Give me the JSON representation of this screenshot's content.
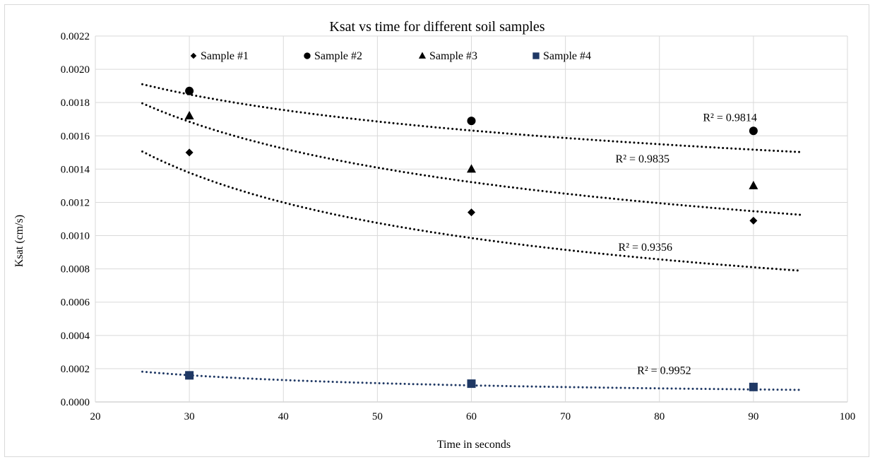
{
  "chart_data": {
    "type": "scatter",
    "title": "Ksat vs time for different soil samples",
    "xlabel": "Time in seconds",
    "ylabel": "Ksat (cm/s)",
    "xlim": [
      20,
      100
    ],
    "ylim": [
      0,
      0.0022
    ],
    "x_ticks": [
      "20",
      "30",
      "40",
      "50",
      "60",
      "70",
      "80",
      "90",
      "100"
    ],
    "y_ticks": [
      "0.0000",
      "0.0002",
      "0.0004",
      "0.0006",
      "0.0008",
      "0.0010",
      "0.0012",
      "0.0014",
      "0.0016",
      "0.0018",
      "0.0020",
      "0.0022"
    ],
    "grid": true,
    "legend_position": "top",
    "trendline": "power",
    "trend_x_range": [
      25,
      95
    ],
    "series": [
      {
        "name": "Sample #1",
        "marker": "diamond",
        "color": "#000000",
        "x": [
          30,
          60,
          90
        ],
        "y": [
          0.0015,
          0.00114,
          0.00109
        ],
        "trend": {
          "a": 0.00715,
          "b": -0.484
        },
        "r2": "R² = 0.9356",
        "r2_pos": [
          78.5,
          0.00093
        ]
      },
      {
        "name": "Sample #2",
        "marker": "circle",
        "color": "#000000",
        "x": [
          30,
          60,
          90
        ],
        "y": [
          0.00187,
          0.00169,
          0.00163
        ],
        "trend": {
          "a": 0.00341,
          "b": -0.18
        },
        "r2": "R² = 0.9814",
        "r2_pos": [
          87.5,
          0.00171
        ]
      },
      {
        "name": "Sample #3",
        "marker": "triangle",
        "color": "#000000",
        "x": [
          30,
          60,
          90
        ],
        "y": [
          0.00172,
          0.0014,
          0.0013
        ],
        "trend": {
          "a": 0.00554,
          "b": -0.35
        },
        "r2": "R² = 0.9835",
        "r2_pos": [
          78.2,
          0.00146
        ]
      },
      {
        "name": "Sample #4",
        "marker": "square",
        "color": "#1f3864",
        "x": [
          30,
          60,
          90
        ],
        "y": [
          0.00016,
          0.00011,
          9e-05
        ],
        "trend": {
          "a": 0.00168,
          "b": -0.69
        },
        "r2": "R² = 0.9952",
        "r2_pos": [
          80.5,
          0.00019
        ]
      }
    ]
  }
}
